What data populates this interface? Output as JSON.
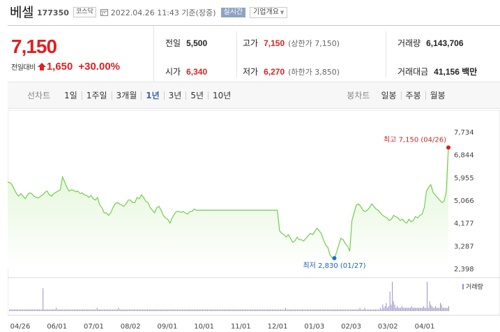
{
  "header": {
    "name": "베셀",
    "code": "177350",
    "market": "코스닥",
    "datetime": "2022.04.26 11:43 기준(장중)",
    "realtime": "실시간",
    "overview": "기업개요"
  },
  "quote": {
    "price": "7,150",
    "change_label": "전일대비",
    "change": "1,650",
    "change_pct": "+30.00%",
    "prev_close_label": "전일",
    "prev_close": "5,500",
    "open_label": "시가",
    "open": "6,340",
    "high_label": "고가",
    "high": "7,150",
    "upper_limit": "(상한가 7,150)",
    "low_label": "저가",
    "low": "6,270",
    "lower_limit": "(하한가 3,850)",
    "volume_label": "거래량",
    "volume": "6,143,706",
    "amount_label": "거래대금",
    "amount": "41,156 백만"
  },
  "toolbar": {
    "line_chart_label": "선차트",
    "periods": [
      "1일",
      "1주일",
      "3개월",
      "1년",
      "3년",
      "5년",
      "10년"
    ],
    "active_period": "1년",
    "candle_chart_label": "봉차트",
    "candles": [
      "일봉",
      "주봉",
      "월봉"
    ]
  },
  "colors": {
    "up": "#e02020",
    "line": "#6fcf4a",
    "fill_top": "#dff5d3",
    "active": "#3b63b5",
    "high_marker": "#e01b1b",
    "low_marker": "#1f6fd6",
    "volume": "#9b8fc8"
  },
  "icons": {
    "calendar": "calendar-icon",
    "up_arrow": "up-arrow-icon",
    "chevron": "chevron-down-icon"
  },
  "chart_data": {
    "type": "area",
    "y_ticks": [
      "7,734",
      "6,844",
      "5,955",
      "5,066",
      "4,177",
      "3,287",
      "2,398"
    ],
    "ylim": [
      2398,
      7734
    ],
    "x_ticks": [
      "04/26",
      "06/01",
      "07/01",
      "08/02",
      "09/01",
      "10/01",
      "11/01",
      "12/01",
      "01/03",
      "02/03",
      "03/02",
      "04/01"
    ],
    "series": [
      {
        "values": [
          5800,
          5780,
          5700,
          5520,
          5350,
          5250,
          5350,
          5250,
          5150,
          5300,
          5380,
          5350,
          5250,
          5200,
          5180,
          5250,
          5300,
          5400,
          5450,
          5300,
          5250,
          5350,
          5400,
          5450,
          5500,
          6000,
          5800,
          5600,
          5450,
          5500,
          5480,
          5420,
          5450,
          5350,
          5380,
          5300,
          5280,
          5200,
          5280,
          5150,
          5100,
          5200,
          4900,
          4800,
          4600,
          4600,
          4500,
          4600,
          4800,
          4950,
          5000,
          4950,
          4900,
          4850,
          4950,
          5100,
          5100,
          5000,
          5000,
          5200,
          5150,
          5300,
          5200,
          5050,
          5000,
          4800,
          4700,
          4600,
          4800,
          4850,
          4700,
          4500,
          4400,
          4350,
          4200,
          4400,
          4550,
          4650,
          4650,
          4620,
          4650,
          4600,
          4550,
          4650,
          4650,
          4750,
          4700,
          4700,
          4700,
          4700,
          4700,
          4700,
          4700,
          4700,
          4700,
          4700,
          4700,
          4700,
          4700,
          4700,
          4700,
          4700,
          4700,
          4700,
          4700,
          4700,
          4700,
          4700,
          4700,
          4700,
          4700,
          4700,
          4700,
          4700,
          4700,
          4700,
          4700,
          4700,
          4700,
          4700,
          4700,
          4700,
          4700,
          4700,
          3900,
          3800,
          3750,
          3650,
          3750,
          3600,
          3450,
          3500,
          3650,
          3550,
          3550,
          3500,
          3600,
          3700,
          3800,
          3750,
          3850,
          4000,
          3900,
          3800,
          3550,
          3350,
          3250,
          2950,
          2850,
          2830,
          3050,
          3350,
          3600,
          3550,
          3400,
          3300,
          3100,
          4300,
          4600,
          4900,
          4950,
          4850,
          4700,
          4650,
          4700,
          4800,
          4950,
          4850,
          4750,
          4700,
          4600,
          4500,
          4450,
          4400,
          4300,
          4350,
          4500,
          4450,
          4400,
          4300,
          4350,
          4250,
          4200,
          4350,
          4250,
          4300,
          4450,
          4400,
          4500,
          4550,
          4800,
          5450,
          5600,
          5700,
          5400,
          5300,
          5200,
          5100,
          5000,
          5050,
          5400,
          7150
        ]
      }
    ],
    "high": {
      "label": "최고 7,150 (04/26)",
      "value": 7150
    },
    "low": {
      "label": "최저 2,830 (01/27)",
      "value": 2830
    },
    "volume_label": "거래량",
    "volume": [
      1,
      1,
      1,
      1,
      1,
      1,
      1,
      1,
      1,
      1,
      1,
      1,
      1,
      1,
      1,
      1,
      1,
      1,
      1,
      1,
      1,
      1,
      1,
      1,
      1,
      1,
      1,
      1,
      14,
      1,
      1,
      1,
      1,
      1,
      1,
      1,
      1,
      1,
      1,
      2,
      1,
      1,
      1,
      1,
      1,
      1,
      1,
      1,
      1,
      1,
      1,
      1,
      1,
      1,
      1,
      1,
      1,
      1,
      1,
      1,
      1,
      1,
      1,
      1,
      1,
      1,
      1,
      1,
      1,
      1,
      1,
      1,
      1,
      2,
      1,
      1,
      1,
      1,
      1,
      1,
      1,
      1,
      1,
      1,
      1,
      1,
      1,
      1,
      1,
      1,
      1,
      2,
      1,
      1,
      1,
      1,
      1,
      1,
      1,
      1,
      1,
      1,
      1,
      1,
      1,
      1,
      1,
      1,
      1,
      1,
      1,
      1,
      1,
      1,
      1,
      1,
      1,
      1,
      1,
      1,
      1,
      1,
      1,
      1,
      1,
      1,
      1,
      1,
      1,
      1,
      1,
      1,
      1,
      1,
      1,
      1,
      1,
      1,
      1,
      1,
      1,
      1,
      1,
      1,
      1,
      1,
      1,
      1,
      1,
      1,
      1,
      1,
      1,
      1,
      1,
      1,
      1,
      1,
      1,
      1,
      1,
      1,
      1,
      1,
      1,
      1,
      1,
      1,
      1,
      1,
      1,
      1,
      1,
      1,
      1,
      1,
      1,
      1,
      1,
      1,
      1,
      1,
      1,
      1,
      1,
      1,
      1,
      1,
      1,
      1,
      1,
      1,
      1,
      1,
      1,
      1,
      1,
      1,
      1,
      1,
      1,
      1,
      1,
      1,
      1,
      1,
      1,
      1,
      1,
      1,
      1,
      1,
      1,
      1,
      1,
      1,
      1,
      1,
      1,
      1,
      1,
      1,
      1,
      1,
      1,
      1,
      1,
      1,
      1,
      1,
      2,
      1,
      1,
      1,
      1,
      1,
      1,
      1,
      1,
      1,
      1,
      1,
      1,
      1,
      1,
      1,
      1,
      1,
      1,
      1,
      1,
      1,
      1,
      1,
      1,
      1,
      1,
      1,
      1,
      1,
      1,
      1,
      1,
      1,
      1,
      1,
      1,
      1,
      1,
      1,
      1,
      1,
      1,
      1,
      1,
      1,
      1,
      1,
      1,
      1,
      1,
      1,
      1,
      1,
      1,
      1,
      1,
      1,
      1,
      1,
      1,
      1,
      2,
      1,
      1,
      1,
      2,
      1,
      1,
      1,
      1,
      1,
      1,
      1,
      1,
      1,
      1,
      1,
      1,
      2,
      1,
      4,
      2,
      3,
      5,
      2,
      3,
      12,
      4,
      18,
      6,
      4,
      2,
      3,
      2,
      2,
      2,
      3,
      2,
      2,
      2,
      2,
      2,
      2,
      2,
      3,
      2,
      2,
      2,
      2,
      2,
      2,
      2,
      2,
      2,
      3,
      2,
      2,
      18,
      2,
      6,
      4,
      3,
      2,
      2,
      3,
      2,
      2,
      2,
      5,
      4,
      2,
      2,
      2,
      2,
      2,
      3
    ]
  }
}
